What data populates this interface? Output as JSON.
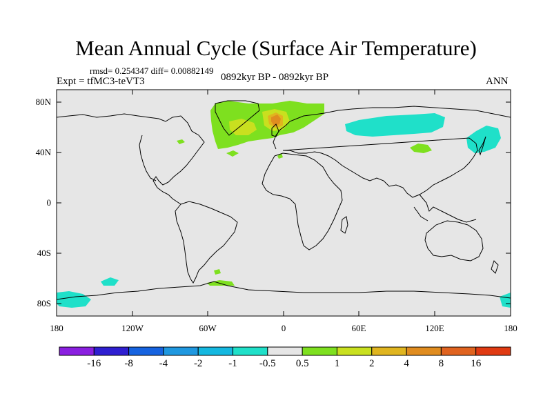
{
  "title": "Mean Annual Cycle (Surface Air Temperature)",
  "stats": "rmsd= 0.254347 diff= 0.00882149",
  "experiment": "Expt = tfMC3-teVT3",
  "period": "0892kyr BP - 0892kyr BP",
  "season": "ANN",
  "lat_ticks": [
    "80N",
    "40N",
    "0",
    "40S",
    "80S"
  ],
  "lon_ticks": [
    "180",
    "120W",
    "60W",
    "0",
    "60E",
    "120E",
    "180"
  ],
  "colors": {
    "background": "#e6e6e6",
    "coast": "#000000"
  },
  "colorbar": {
    "colors": [
      "#8a1fe0",
      "#2f1fd1",
      "#1663e0",
      "#1f98e0",
      "#14b8e0",
      "#1fe0c9",
      "#e6e6e6",
      "#7ee01f",
      "#c9e01f",
      "#e0b51f",
      "#e08c1f",
      "#e0631f",
      "#e03a12"
    ],
    "labels": [
      "-16",
      "-8",
      "-4",
      "-2",
      "-1",
      "-0.5",
      "0.5",
      "1",
      "2",
      "4",
      "8",
      "16"
    ]
  }
}
